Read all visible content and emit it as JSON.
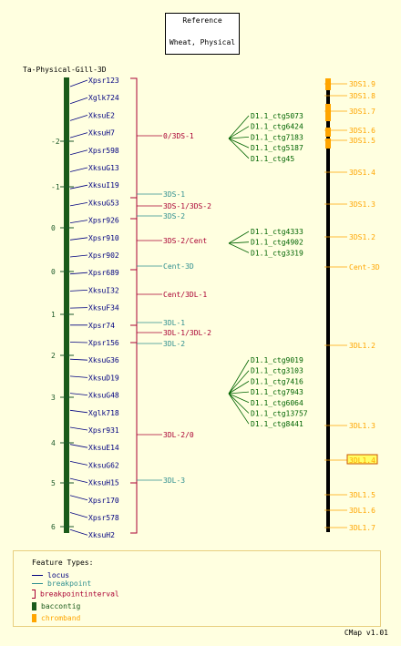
{
  "reference": {
    "line1": "Reference",
    "line2": "Wheat, Physical"
  },
  "map_title": "Ta-Physical-Gill-3D",
  "scale_ticks": [
    "-2",
    "-1",
    "0",
    "0",
    "1",
    "2",
    "3",
    "4",
    "5",
    "6"
  ],
  "loci": [
    "Xpsr123",
    "Xglk724",
    "XksuE2",
    "XksuH7",
    "Xpsr598",
    "XksuG13",
    "XksuI19",
    "XksuG53",
    "Xpsr926",
    "Xpsr910",
    "Xpsr902",
    "Xpsr689",
    "XksuI32",
    "XksuF34",
    "Xpsr74",
    "Xpsr156",
    "XksuG36",
    "XksuD19",
    "XksuG48",
    "Xglk718",
    "Xpsr931",
    "XksuE14",
    "XksuG62",
    "XksuH15",
    "Xpsr170",
    "Xpsr578",
    "XksuH2"
  ],
  "intervals": [
    {
      "label": "0/3DS-1",
      "type": "breakpointinterval"
    },
    {
      "label": "3DS-1",
      "type": "breakpoint"
    },
    {
      "label": "3DS-1/3DS-2",
      "type": "breakpointinterval"
    },
    {
      "label": "3DS-2",
      "type": "breakpoint"
    },
    {
      "label": "3DS-2/Cent",
      "type": "breakpointinterval"
    },
    {
      "label": "Cent-3D",
      "type": "breakpoint"
    },
    {
      "label": "Cent/3DL-1",
      "type": "breakpointinterval"
    },
    {
      "label": "3DL-1",
      "type": "breakpoint"
    },
    {
      "label": "3DL-1/3DL-2",
      "type": "breakpointinterval"
    },
    {
      "label": "3DL-2",
      "type": "breakpoint"
    },
    {
      "label": "3DL-2/0",
      "type": "breakpointinterval"
    },
    {
      "label": "3DL-3",
      "type": "breakpoint"
    }
  ],
  "contig_groups": [
    [
      "D1.1_ctg5073",
      "D1.1_ctg6424",
      "D1.1_ctg7183",
      "D1.1_ctg5187",
      "D1.1_ctg45"
    ],
    [
      "D1.1_ctg4333",
      "D1.1_ctg4902",
      "D1.1_ctg3319"
    ],
    [
      "D1.1_ctg9019",
      "D1.1_ctg3103",
      "D1.1_ctg7416",
      "D1.1_ctg7943",
      "D1.1_ctg6064",
      "D1.1_ctg13757",
      "D1.1_ctg8441"
    ]
  ],
  "chrombands": [
    "3DS1.9",
    "3DS1.8",
    "3DS1.7",
    "3DS1.6",
    "3DS1.5",
    "3DS1.4",
    "3DS1.3",
    "3DS1.2",
    "Cent-3D",
    "3DL1.2",
    "3DL1.3",
    "3DL1.4",
    "3DL1.5",
    "3DL1.6",
    "3DL1.7"
  ],
  "highlighted_band": "3DL1.4",
  "legend": {
    "title": "Feature Types:",
    "items": [
      {
        "label": "locus",
        "color": "#000080"
      },
      {
        "label": "breakpoint",
        "color": "#2f8f8f"
      },
      {
        "label": "breakpointinterval",
        "color": "#aa0033"
      },
      {
        "label": "baccontig",
        "color": "#1a5a1a"
      },
      {
        "label": "chromband",
        "color": "#ffa500"
      }
    ]
  },
  "version": "CMap v1.01",
  "colors": {
    "locus": "#000080",
    "breakpoint": "#2f8f8f",
    "interval": "#aa0033",
    "baccontig": "#1a5a1a",
    "contig_text": "#006400",
    "chromband": "#ffa500",
    "axis": "#1e5a2a"
  }
}
